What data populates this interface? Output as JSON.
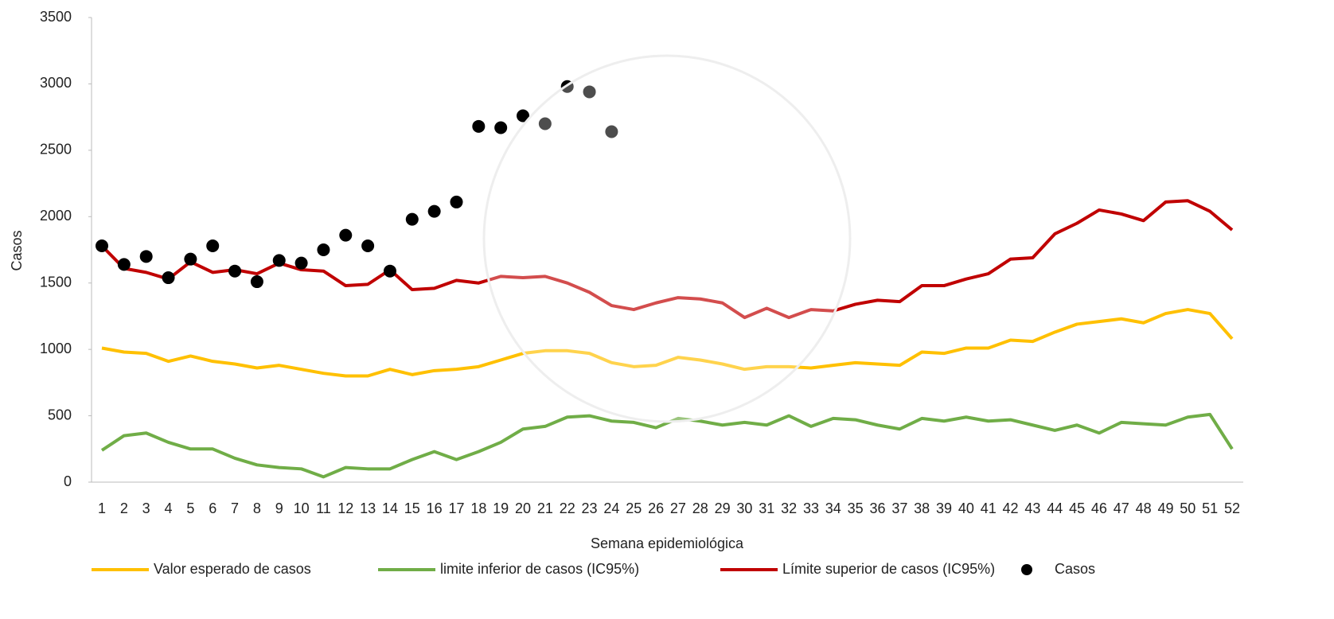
{
  "chart_data": {
    "type": "line",
    "x_label": "Semana epidemiológica",
    "y_label": "Casos",
    "categories": [
      "1",
      "2",
      "3",
      "4",
      "5",
      "6",
      "7",
      "8",
      "9",
      "10",
      "11",
      "12",
      "13",
      "14",
      "15",
      "16",
      "17",
      "18",
      "19",
      "20",
      "21",
      "22",
      "23",
      "24",
      "25",
      "26",
      "27",
      "28",
      "29",
      "30",
      "31",
      "32",
      "33",
      "34",
      "35",
      "36",
      "37",
      "38",
      "39",
      "40",
      "41",
      "42",
      "43",
      "44",
      "45",
      "46",
      "47",
      "48",
      "49",
      "50",
      "51",
      "52"
    ],
    "ylim": [
      0,
      3500
    ],
    "yticks": [
      0,
      500,
      1000,
      1500,
      2000,
      2500,
      3000,
      3500
    ],
    "grid": false,
    "legend": "bottom",
    "series": [
      {
        "name": "Valor esperado de casos",
        "color": "#ffc000",
        "style": "line",
        "values": [
          1010,
          980,
          970,
          910,
          950,
          910,
          890,
          860,
          880,
          850,
          820,
          800,
          800,
          850,
          810,
          840,
          850,
          870,
          920,
          970,
          990,
          990,
          970,
          900,
          870,
          880,
          940,
          920,
          890,
          850,
          870,
          870,
          860,
          880,
          900,
          890,
          880,
          980,
          970,
          1010,
          1010,
          1070,
          1060,
          1130,
          1190,
          1210,
          1230,
          1200,
          1270,
          1300,
          1270,
          1080
        ]
      },
      {
        "name": "limite inferior de casos (IC95%)",
        "color": "#70ad47",
        "style": "line",
        "values": [
          240,
          350,
          370,
          300,
          250,
          250,
          180,
          130,
          110,
          100,
          40,
          110,
          100,
          100,
          170,
          230,
          170,
          230,
          300,
          400,
          420,
          490,
          500,
          460,
          450,
          410,
          480,
          460,
          430,
          450,
          430,
          500,
          420,
          480,
          470,
          430,
          400,
          480,
          460,
          490,
          460,
          470,
          430,
          390,
          430,
          370,
          450,
          440,
          430,
          490,
          510,
          250
        ]
      },
      {
        "name": "Límite superior de casos (IC95%)",
        "color": "#c00000",
        "style": "line",
        "values": [
          1780,
          1610,
          1580,
          1530,
          1660,
          1580,
          1600,
          1570,
          1650,
          1600,
          1590,
          1480,
          1490,
          1600,
          1450,
          1460,
          1520,
          1500,
          1550,
          1540,
          1550,
          1500,
          1430,
          1330,
          1300,
          1350,
          1390,
          1380,
          1350,
          1240,
          1310,
          1240,
          1300,
          1290,
          1340,
          1370,
          1360,
          1480,
          1480,
          1530,
          1570,
          1680,
          1690,
          1870,
          1950,
          2050,
          2020,
          1970,
          2110,
          2120,
          2040,
          1900
        ]
      },
      {
        "name": "Casos",
        "color": "#000000",
        "style": "markers",
        "values": [
          1780,
          1640,
          1700,
          1540,
          1680,
          1780,
          1590,
          1510,
          1670,
          1650,
          1750,
          1860,
          1780,
          1590,
          1980,
          2040,
          2110,
          2680,
          2670,
          2760,
          2700,
          2980,
          2940,
          2640,
          null,
          null,
          null,
          null,
          null,
          null,
          null,
          null,
          null,
          null,
          null,
          null,
          null,
          null,
          null,
          null,
          null,
          null,
          null,
          null,
          null,
          null,
          null,
          null,
          null,
          null,
          null,
          null
        ]
      }
    ]
  }
}
